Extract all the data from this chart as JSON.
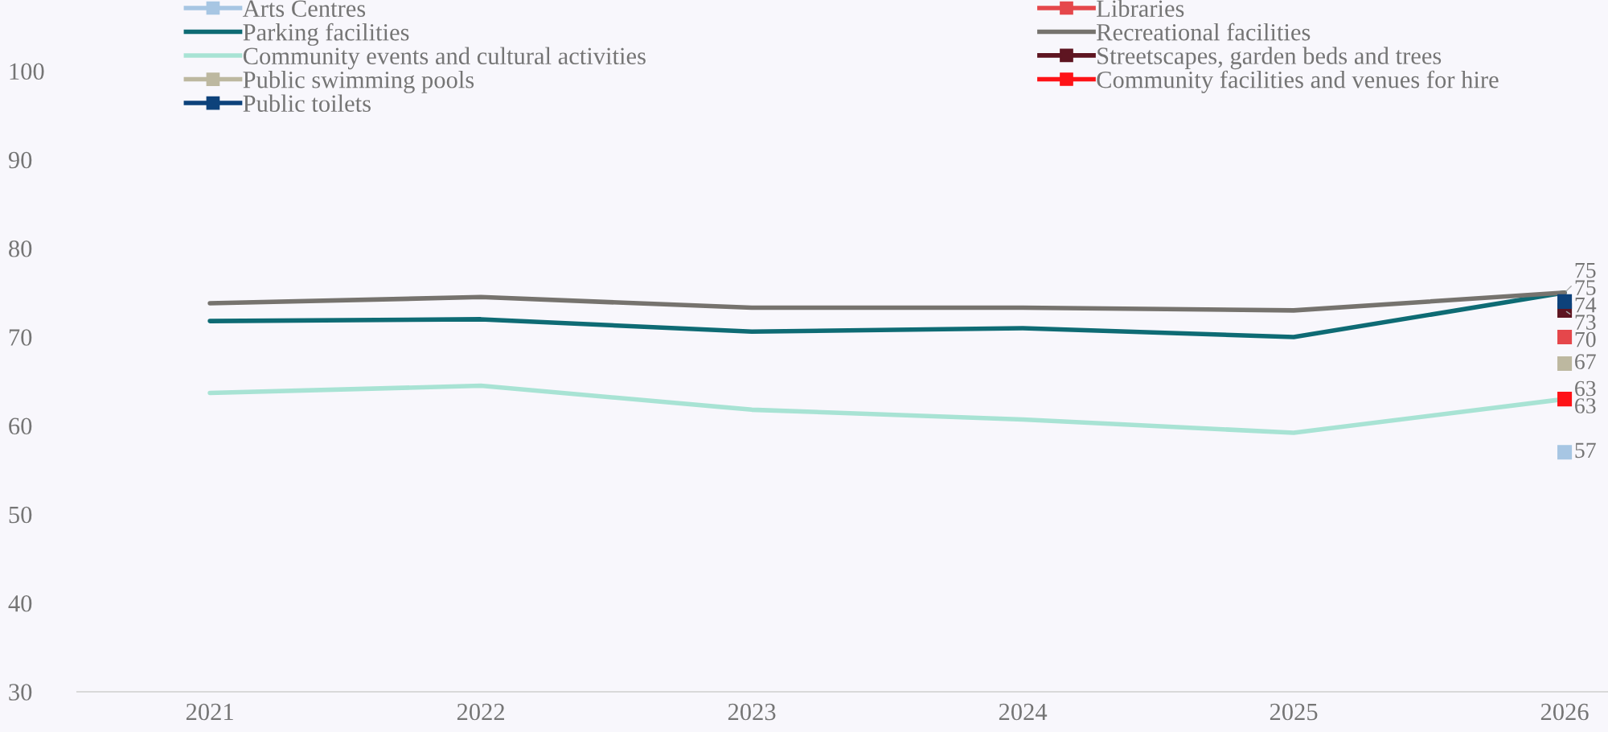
{
  "chart_data": {
    "type": "line",
    "categories": [
      "2021",
      "2022",
      "2023",
      "2024",
      "2025",
      "2026"
    ],
    "ylim": [
      30,
      108
    ],
    "yticks": [
      30,
      40,
      50,
      60,
      70,
      80,
      90,
      100
    ],
    "grid": false,
    "legend": "top",
    "line_style": "solid",
    "series": [
      {
        "name": "Arts Centres",
        "color": "#a7c6e3",
        "marker": "square",
        "values": [
          null,
          null,
          null,
          null,
          null,
          57
        ],
        "value_labels": [
          null,
          null,
          null,
          null,
          null,
          "57"
        ]
      },
      {
        "name": "Libraries",
        "color": "#e5474b",
        "marker": "square",
        "values": [
          null,
          null,
          null,
          null,
          null,
          70
        ],
        "value_labels": [
          null,
          null,
          null,
          null,
          null,
          "70"
        ]
      },
      {
        "name": "Parking facilities",
        "color": "#0e6b74",
        "marker": "none",
        "values": [
          71.8,
          72.0,
          70.6,
          71.0,
          70.0,
          75
        ],
        "value_labels": [
          null,
          null,
          null,
          null,
          null,
          "75"
        ]
      },
      {
        "name": "Recreational facilities",
        "color": "#76736e",
        "marker": "none",
        "values": [
          73.8,
          74.5,
          73.3,
          73.3,
          73.0,
          75
        ],
        "value_labels": [
          null,
          null,
          null,
          null,
          null,
          "75"
        ]
      },
      {
        "name": "Community events and cultural activities",
        "color": "#a8e3d4",
        "marker": "none",
        "values": [
          63.7,
          64.5,
          61.8,
          60.7,
          59.2,
          63
        ],
        "value_labels": [
          null,
          null,
          null,
          null,
          null,
          "63"
        ]
      },
      {
        "name": "Streetscapes, garden beds and trees",
        "color": "#5e1521",
        "marker": "square",
        "values": [
          null,
          null,
          null,
          null,
          null,
          73
        ],
        "value_labels": [
          null,
          null,
          null,
          null,
          null,
          "73"
        ]
      },
      {
        "name": "Public swimming pools",
        "color": "#bdb8a0",
        "marker": "square",
        "values": [
          null,
          null,
          null,
          null,
          null,
          67
        ],
        "value_labels": [
          null,
          null,
          null,
          null,
          null,
          "67"
        ]
      },
      {
        "name": "Community facilities and venues for hire",
        "color": "#fe1317",
        "marker": "square",
        "values": [
          null,
          null,
          null,
          null,
          null,
          63
        ],
        "value_labels": [
          null,
          null,
          null,
          null,
          null,
          "63"
        ]
      },
      {
        "name": "Public toilets",
        "color": "#0d427b",
        "marker": "square",
        "values": [
          null,
          null,
          null,
          null,
          null,
          74
        ],
        "value_labels": [
          null,
          null,
          null,
          null,
          null,
          "74"
        ]
      }
    ]
  }
}
